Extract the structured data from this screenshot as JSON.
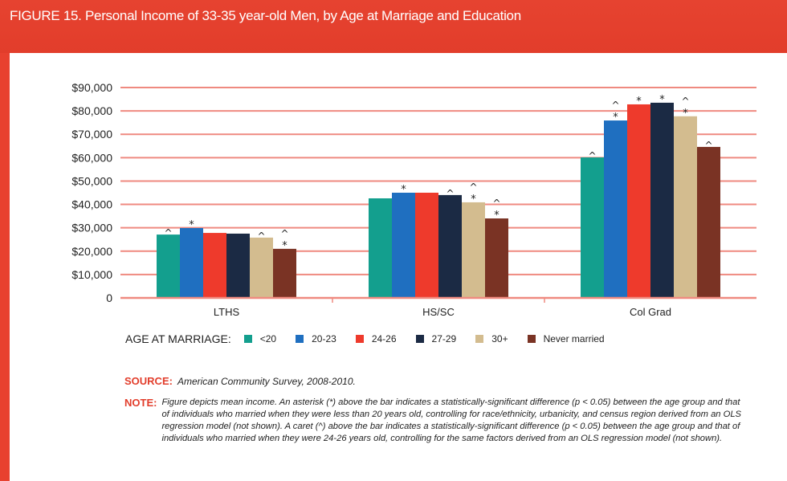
{
  "title": "FIGURE 15.  Personal Income of 33-35 year-old Men, by Age at Marriage and Education",
  "chart_data": {
    "type": "bar",
    "title": "FIGURE 15.  Personal Income of 33-35 year-old Men, by Age at Marriage and Education",
    "categories": [
      "LTHS",
      "HS/SC",
      "Col Grad"
    ],
    "ylim": [
      0,
      90000
    ],
    "yticks": [
      0,
      10000,
      20000,
      30000,
      40000,
      50000,
      60000,
      70000,
      80000,
      90000
    ],
    "ytick_labels": [
      "0",
      "$10,000",
      "$20,000",
      "$30,000",
      "$40,000",
      "$50,000",
      "$60,000",
      "$70,000",
      "$80,000",
      "$90,000"
    ],
    "grid": true,
    "legend_title": "AGE AT MARRIAGE:",
    "legend_position": "bottom",
    "series": [
      {
        "name": "<20",
        "color": "#139f8e",
        "values": [
          27100,
          42600,
          60100
        ],
        "markers": [
          "^",
          "",
          "^"
        ]
      },
      {
        "name": "20-23",
        "color": "#1f6fc0",
        "values": [
          29900,
          45000,
          75900
        ],
        "markers": [
          "*",
          "*",
          "^*"
        ]
      },
      {
        "name": "24-26",
        "color": "#ee3a2c",
        "values": [
          27800,
          45000,
          82800
        ],
        "markers": [
          "",
          "",
          "*"
        ]
      },
      {
        "name": "27-29",
        "color": "#1b2a44",
        "values": [
          27500,
          44000,
          83500
        ],
        "markers": [
          "",
          "^",
          "*"
        ]
      },
      {
        "name": "30+",
        "color": "#d3bc8f",
        "values": [
          25800,
          40900,
          77700
        ],
        "markers": [
          "^",
          "^*",
          "^*"
        ]
      },
      {
        "name": "Never married",
        "color": "#7a3324",
        "values": [
          21000,
          34000,
          64600
        ],
        "markers": [
          "^*",
          "^*",
          "^"
        ]
      }
    ]
  },
  "source_label": "SOURCE:",
  "source_text": "American Community Survey, 2008-2010.",
  "note_label": "NOTE:",
  "note_text": "Figure depicts mean income. An asterisk (*) above the bar indicates a statistically-significant difference (p < 0.05) between the age group and that of individuals who married when they were less than 20 years old, controlling for race/ethnicity, urbanicity, and census region derived from an OLS regression model (not shown). A caret (^) above the bar indicates a statistically-significant difference (p < 0.05) between the age group and that of individuals who married when they were 24-26 years old, controlling for the same factors derived from an OLS regression model (not shown)."
}
